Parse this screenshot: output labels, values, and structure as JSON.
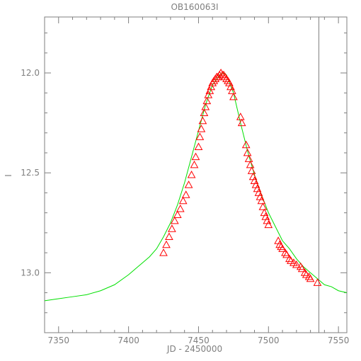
{
  "chart_data": {
    "type": "scatter",
    "title": "OB160063I",
    "xlabel": "JD - 2450000",
    "ylabel": "I",
    "xlim": [
      7340,
      7556
    ],
    "ylim": [
      13.3,
      11.72
    ],
    "y_inverted": true,
    "x_ticks": [
      7350,
      7400,
      7450,
      7500,
      7550
    ],
    "x_tick_labels": [
      "7350",
      "7400",
      "7450",
      "7500",
      "7550"
    ],
    "y_ticks": [
      12.0,
      12.5,
      13.0
    ],
    "y_tick_labels": [
      "12.0",
      "12.5",
      "13.0"
    ],
    "grid": false,
    "legend": "none",
    "vertical_line_x": 7536,
    "colors": {
      "data": "#ff0000",
      "model": "#00e000",
      "axes": "#7f7f7f",
      "vline": "#7f7f7f"
    },
    "model": {
      "name": "",
      "x": [
        7340,
        7350,
        7360,
        7370,
        7380,
        7390,
        7400,
        7405,
        7410,
        7415,
        7420,
        7425,
        7430,
        7435,
        7440,
        7445,
        7450,
        7455,
        7460,
        7465,
        7468,
        7470,
        7475,
        7480,
        7485,
        7490,
        7495,
        7500,
        7505,
        7510,
        7515,
        7520,
        7525,
        7530,
        7535,
        7540,
        7545,
        7550,
        7556
      ],
      "y": [
        13.14,
        13.13,
        13.12,
        13.11,
        13.09,
        13.06,
        13.01,
        12.98,
        12.95,
        12.92,
        12.88,
        12.82,
        12.75,
        12.66,
        12.55,
        12.42,
        12.29,
        12.16,
        12.06,
        12.01,
        12.0,
        12.01,
        12.1,
        12.25,
        12.39,
        12.51,
        12.61,
        12.7,
        12.77,
        12.84,
        12.88,
        12.93,
        12.97,
        13.0,
        13.03,
        13.06,
        13.07,
        13.09,
        13.1
      ]
    },
    "series": [
      {
        "name": "",
        "x": [
          7425,
          7427,
          7429,
          7431,
          7433,
          7435,
          7437,
          7439,
          7441,
          7443,
          7445,
          7447,
          7448,
          7450,
          7451,
          7452,
          7453,
          7454,
          7455,
          7456,
          7457,
          7458,
          7459,
          7460,
          7461,
          7462,
          7463,
          7464,
          7465,
          7466,
          7467,
          7468,
          7469,
          7470,
          7471,
          7472,
          7473,
          7474,
          7475,
          7480,
          7481,
          7484,
          7485,
          7486,
          7487,
          7488,
          7489,
          7490,
          7491,
          7492,
          7493,
          7494,
          7495,
          7496,
          7497,
          7498,
          7499,
          7500,
          7507,
          7508,
          7509,
          7510,
          7512,
          7513,
          7515,
          7516,
          7518,
          7520,
          7523,
          7524,
          7526,
          7527,
          7529,
          7530,
          7535
        ],
        "y": [
          12.9,
          12.86,
          12.82,
          12.78,
          12.74,
          12.71,
          12.68,
          12.64,
          12.61,
          12.56,
          12.51,
          12.46,
          12.42,
          12.37,
          12.32,
          12.28,
          12.24,
          12.2,
          12.17,
          12.14,
          12.11,
          12.09,
          12.07,
          12.05,
          12.04,
          12.03,
          12.02,
          12.02,
          12.01,
          12.0,
          12.01,
          12.01,
          12.02,
          12.03,
          12.04,
          12.05,
          12.07,
          12.09,
          12.12,
          12.22,
          12.25,
          12.36,
          12.4,
          12.43,
          12.46,
          12.49,
          12.52,
          12.54,
          12.56,
          12.58,
          12.6,
          12.62,
          12.64,
          12.67,
          12.7,
          12.72,
          12.74,
          12.76,
          12.84,
          12.86,
          12.87,
          12.88,
          12.9,
          12.91,
          12.93,
          12.94,
          12.95,
          12.96,
          12.97,
          12.98,
          13.0,
          13.01,
          13.02,
          13.03,
          13.05
        ]
      }
    ]
  }
}
